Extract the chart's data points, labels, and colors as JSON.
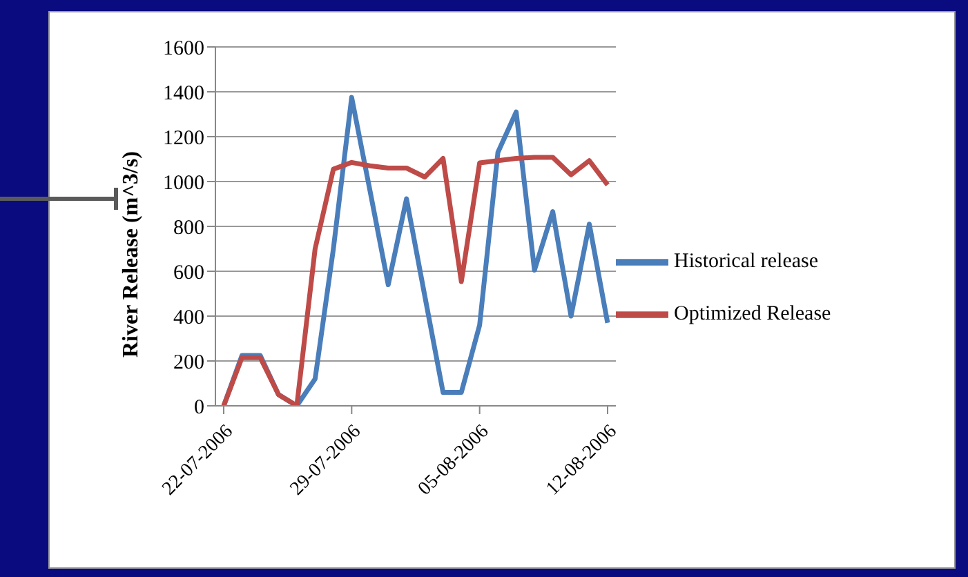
{
  "chart_data": {
    "type": "line",
    "ylabel": "River Release (m^3/s)",
    "categories": [
      "22-07-2006",
      null,
      null,
      null,
      null,
      null,
      null,
      "29-07-2006",
      null,
      null,
      null,
      null,
      null,
      null,
      "05-08-2006",
      null,
      null,
      null,
      null,
      null,
      null,
      "12-08-2006"
    ],
    "series": [
      {
        "name": "Historical release",
        "color": "#4a7ebb",
        "values": [
          0,
          225,
          225,
          50,
          0,
          120,
          700,
          1375,
          960,
          540,
          923,
          490,
          60,
          60,
          360,
          1130,
          1310,
          605,
          866,
          400,
          810,
          370
        ]
      },
      {
        "name": "Optimized Release",
        "color": "#be4b48",
        "values": [
          0,
          215,
          215,
          50,
          0,
          700,
          1055,
          1085,
          1070,
          1060,
          1060,
          1020,
          1103,
          554,
          1083,
          1093,
          1103,
          1108,
          1108,
          1030,
          1093,
          985
        ]
      }
    ],
    "ylim": [
      0,
      1600
    ],
    "yticks": [
      0,
      200,
      400,
      600,
      800,
      1000,
      1200,
      1400,
      1600
    ],
    "grid": "y",
    "legend": "right",
    "marker": "none",
    "line_style": "solid"
  }
}
